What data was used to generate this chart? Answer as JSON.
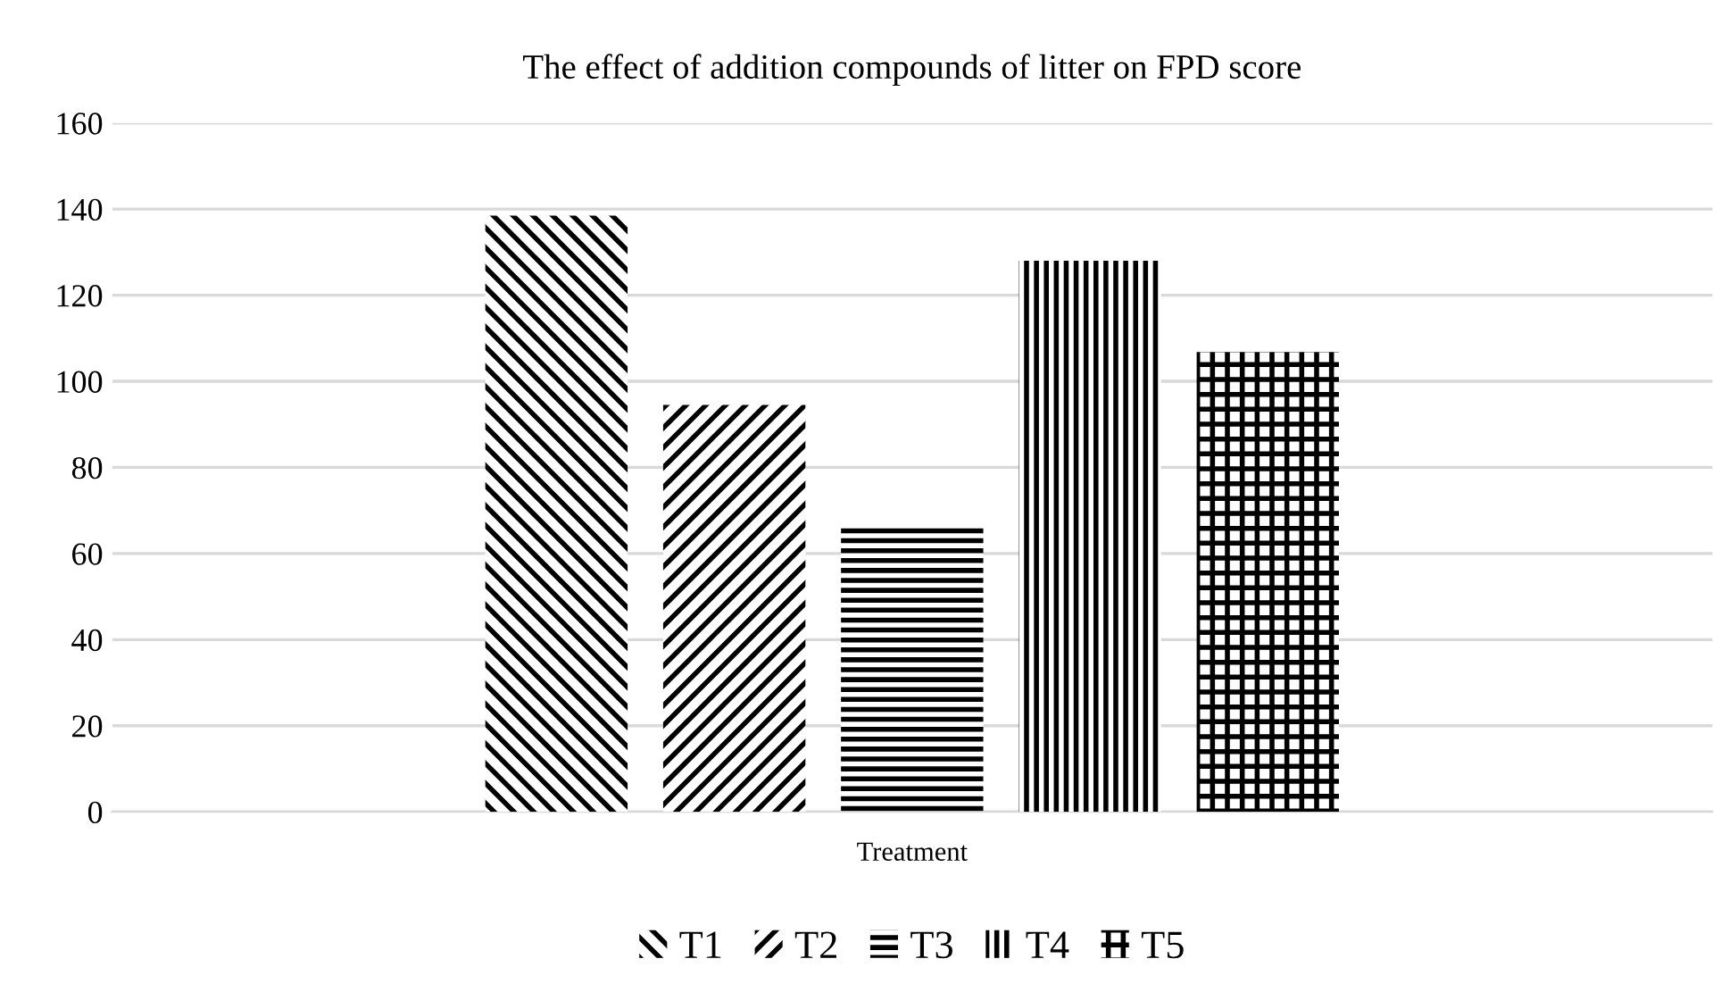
{
  "chart_data": {
    "type": "bar",
    "title": "The effect of addition compounds of litter on FPD score",
    "categories": [
      "Treatment"
    ],
    "series": [
      {
        "name": "T1",
        "color": "#000000",
        "values": [
          138.5
        ]
      },
      {
        "name": "T2",
        "color": "#000000",
        "values": [
          94.5
        ]
      },
      {
        "name": "T3",
        "color": "#000000",
        "values": [
          66.3
        ]
      },
      {
        "name": "T4",
        "color": "#000000",
        "values": [
          128
        ]
      },
      {
        "name": "T5",
        "color": "#000000",
        "values": [
          106.8
        ]
      }
    ],
    "ylim": [
      0,
      160
    ],
    "yticks": [
      0,
      20,
      40,
      60,
      80,
      100,
      120,
      140,
      160
    ],
    "grid": "y",
    "legend": "bottom"
  }
}
